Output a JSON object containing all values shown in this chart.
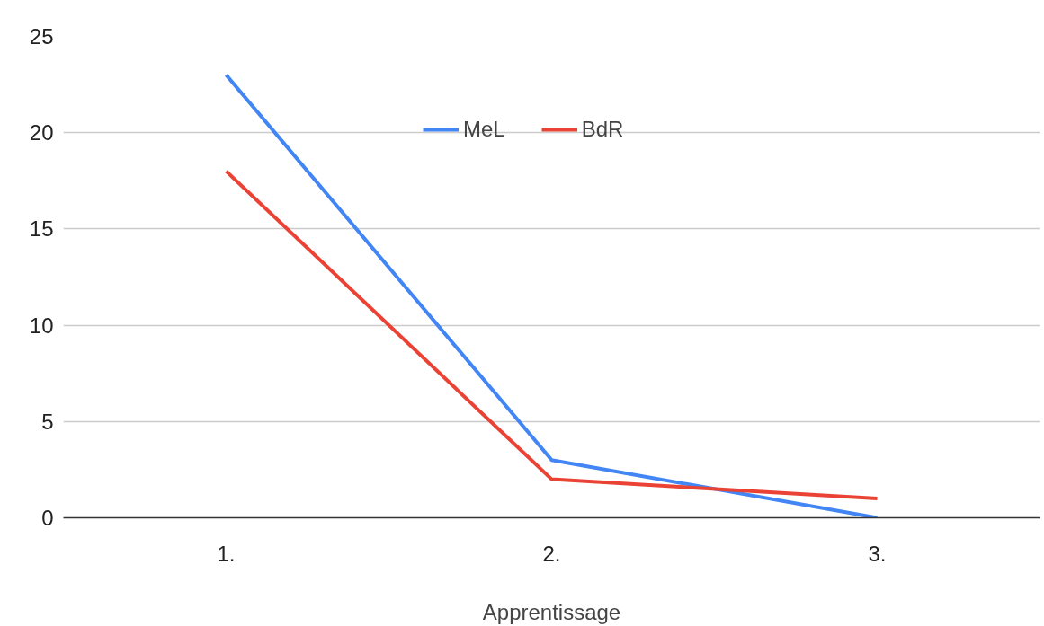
{
  "chart_data": {
    "type": "line",
    "xlabel": "Apprentissage",
    "categories": [
      "1.",
      "2.",
      "3."
    ],
    "series": [
      {
        "name": "MeL",
        "color": "#4285f4",
        "values": [
          23,
          3,
          0
        ]
      },
      {
        "name": "BdR",
        "color": "#ea4335",
        "values": [
          18,
          2,
          1
        ]
      }
    ],
    "ylim": [
      0,
      25
    ],
    "yticks": [
      0,
      5,
      10,
      15,
      20,
      25
    ],
    "grid": "y",
    "legend": "top",
    "marker": "none",
    "line_style": "solid"
  }
}
